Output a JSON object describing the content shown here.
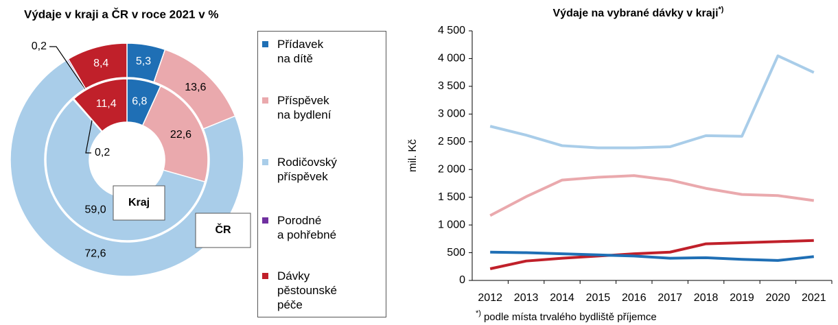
{
  "chart_data": [
    {
      "type": "donut",
      "title": "Výdaje v kraji a ČR v roce 2021 v %",
      "categories": [
        "Přídavek\nna dítě",
        "Příspěvek\nna bydlení",
        "Rodičovský\npříspěvek",
        "Porodné\na pohřebné",
        "Dávky\npěstounské\npéče"
      ],
      "colors": [
        "#1f6fb5",
        "#eaa9ad",
        "#a9cde9",
        "#7030a0",
        "#c0202a"
      ],
      "series": [
        {
          "name": "Kraj",
          "values": [
            6.8,
            22.6,
            59.0,
            0.2,
            11.4
          ],
          "value_labels": [
            "6,8",
            "22,6",
            "59,0",
            "0,2",
            "11,4"
          ]
        },
        {
          "name": "ČR",
          "values": [
            5.3,
            13.6,
            72.6,
            0.2,
            8.4
          ],
          "value_labels": [
            "5,3",
            "13,6",
            "72,6",
            "0,2",
            "8,4"
          ]
        }
      ]
    },
    {
      "type": "line",
      "title": "Výdaje na vybrané dávky v kraji",
      "title_mark": "*)",
      "y_label": "mil. Kč",
      "categories": [
        "2012",
        "2013",
        "2014",
        "2015",
        "2016",
        "2017",
        "2018",
        "2019",
        "2020",
        "2021"
      ],
      "ylim": [
        0,
        4500
      ],
      "yticks": [
        0,
        500,
        {
          "value": 1000,
          "label": "1 000"
        },
        {
          "value": 1500,
          "label": "1 500"
        },
        {
          "value": 2000,
          "label": "2 000"
        },
        {
          "value": 2500,
          "label": "2 500"
        },
        {
          "value": 3000,
          "label": "3 000"
        },
        {
          "value": 3500,
          "label": "3 500"
        },
        {
          "value": 4000,
          "label": "4 000"
        },
        {
          "value": 4500,
          "label": "4 500"
        }
      ],
      "series": [
        {
          "color": "#a9cde9",
          "values": [
            2780,
            2620,
            2430,
            2390,
            2390,
            2410,
            2610,
            2600,
            4050,
            3750
          ]
        },
        {
          "color": "#eaa9ad",
          "values": [
            1170,
            1510,
            1810,
            1860,
            1890,
            1810,
            1660,
            1550,
            1530,
            1440
          ]
        },
        {
          "color": "#c0202a",
          "values": [
            210,
            350,
            400,
            440,
            480,
            510,
            660,
            680,
            700,
            720
          ]
        },
        {
          "color": "#1f6fb5",
          "values": [
            510,
            500,
            480,
            460,
            440,
            400,
            410,
            380,
            360,
            430
          ]
        }
      ],
      "footnote": {
        "mark": "*)",
        "text": "podle místa trvalého bydliště příjemce"
      }
    }
  ]
}
